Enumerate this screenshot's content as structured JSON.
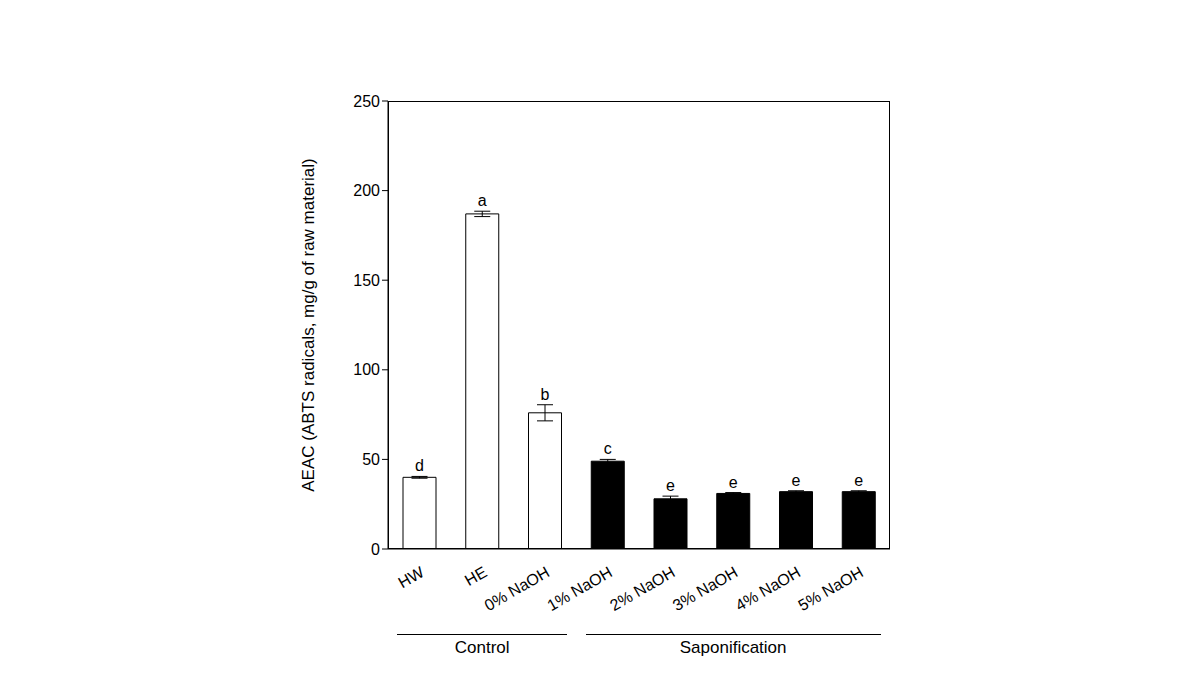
{
  "chart_data": {
    "type": "bar",
    "y_label": "AEAC (ABTS radicals, mg/g of raw material)",
    "categories": [
      "HW",
      "HE",
      "0% NaOH",
      "1% NaOH",
      "2% NaOH",
      "3% NaOH",
      "4% NaOH",
      "5% NaOH"
    ],
    "values": [
      40,
      187,
      76,
      49,
      28,
      31,
      32,
      32
    ],
    "errors": [
      0.5,
      1.5,
      4.5,
      1,
      1.5,
      0.5,
      0.5,
      0.5
    ],
    "letters": [
      "d",
      "a",
      "b",
      "c",
      "e",
      "e",
      "e",
      "e"
    ],
    "colors": [
      "#ffffff",
      "#ffffff",
      "#ffffff",
      "#000000",
      "#000000",
      "#000000",
      "#000000",
      "#000000"
    ],
    "groups": [
      {
        "label": "Control",
        "categories": [
          "HW",
          "HE",
          "0% NaOH"
        ]
      },
      {
        "label": "Saponification",
        "categories": [
          "1% NaOH",
          "2% NaOH",
          "3% NaOH",
          "4% NaOH",
          "5% NaOH"
        ]
      }
    ],
    "ylim": [
      0,
      250
    ],
    "yticks": [
      0,
      50,
      100,
      150,
      200,
      250
    ],
    "grid": false
  }
}
